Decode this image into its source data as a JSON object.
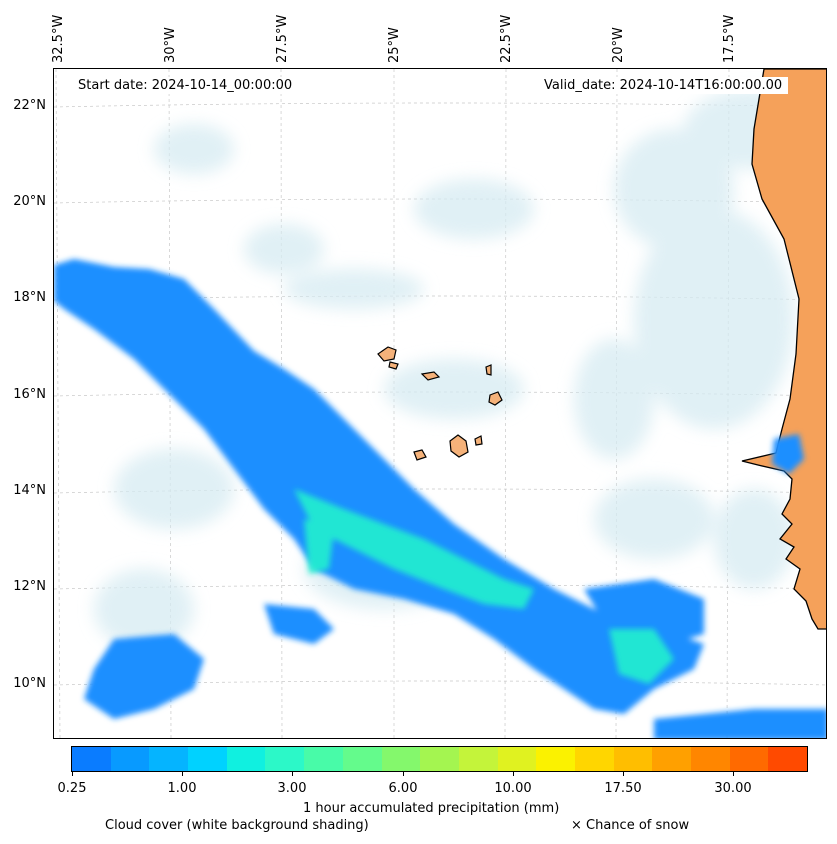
{
  "map": {
    "start_date": "Start date: 2024-10-14_00:00:00",
    "valid_date": "Valid_date: 2024-10-14T16:00:00.00",
    "lon_labels": [
      "32.5°W",
      "30°W",
      "27.5°W",
      "25°W",
      "22.5°W",
      "20°W",
      "17.5°W"
    ],
    "lat_labels": [
      "22°N",
      "20°N",
      "18°N",
      "16°N",
      "14°N",
      "12°N",
      "10°N"
    ],
    "colors": {
      "land": "#f5a15a",
      "cloud": "#cfe6ee",
      "precip_light": "#1e90ff",
      "precip_mid": "#19f0d2"
    }
  },
  "colorbar": {
    "ticks": [
      "0.25",
      "1.00",
      "3.00",
      "6.00",
      "10.00",
      "17.50",
      "30.00"
    ],
    "colors": [
      "#0a7cff",
      "#089aff",
      "#05b4ff",
      "#00d2ff",
      "#10f0e0",
      "#2cf8c8",
      "#48fba8",
      "#64fb8c",
      "#84f86c",
      "#a4f550",
      "#c4f43a",
      "#e0f220",
      "#fbf200",
      "#ffd600",
      "#ffbe00",
      "#ffa000",
      "#ff8600",
      "#ff6a00",
      "#ff4a00"
    ],
    "label": "1 hour accumulated precipitation (mm)"
  },
  "legend": {
    "cloud_cover": "Cloud cover (white background shading)",
    "snow": "× Chance of snow"
  }
}
